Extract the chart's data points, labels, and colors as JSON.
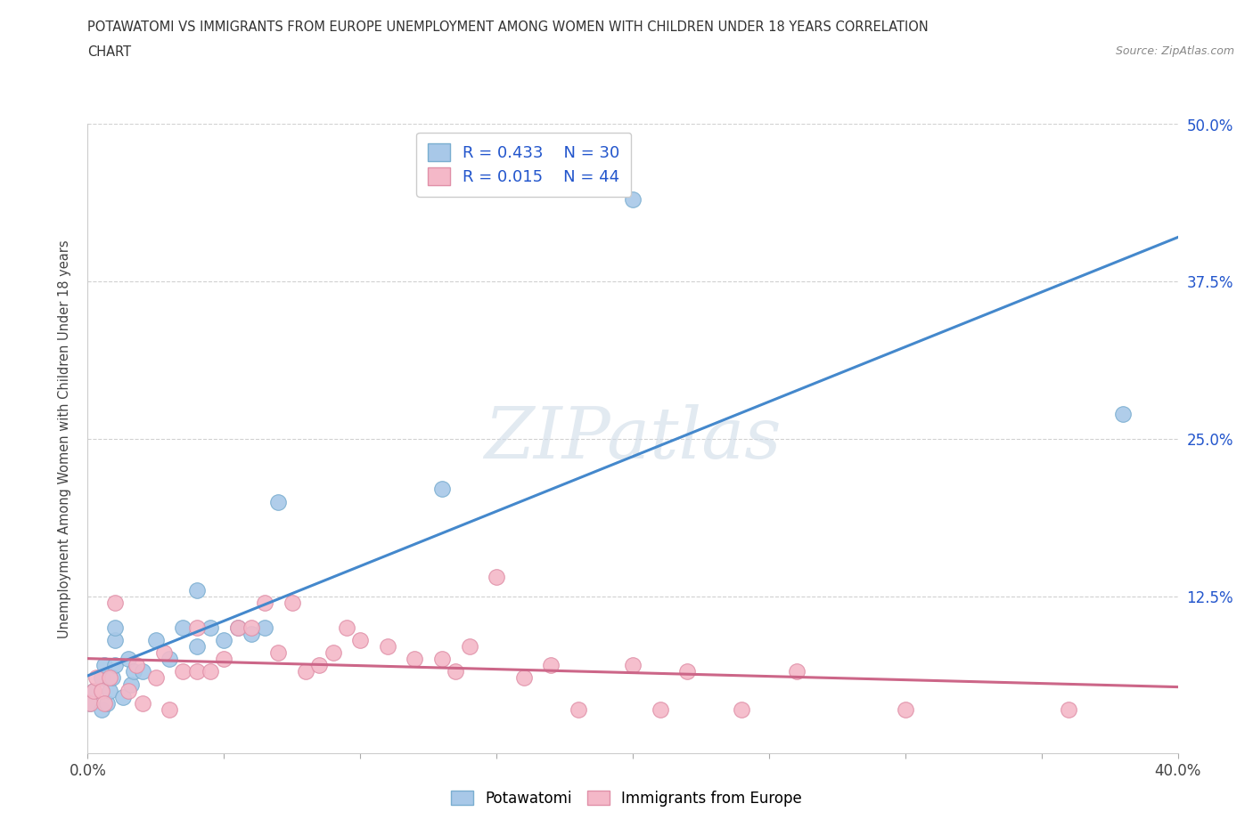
{
  "title_line1": "POTAWATOMI VS IMMIGRANTS FROM EUROPE UNEMPLOYMENT AMONG WOMEN WITH CHILDREN UNDER 18 YEARS CORRELATION",
  "title_line2": "CHART",
  "source": "Source: ZipAtlas.com",
  "ylabel": "Unemployment Among Women with Children Under 18 years",
  "xlim": [
    0.0,
    0.4
  ],
  "ylim": [
    0.0,
    0.5
  ],
  "xticks": [
    0.0,
    0.05,
    0.1,
    0.15,
    0.2,
    0.25,
    0.3,
    0.35,
    0.4
  ],
  "xtick_labels": [
    "0.0%",
    "",
    "",
    "",
    "",
    "",
    "",
    "",
    "40.0%"
  ],
  "yticks": [
    0.0,
    0.125,
    0.25,
    0.375,
    0.5
  ],
  "ytick_labels": [
    "",
    "12.5%",
    "25.0%",
    "37.5%",
    "50.0%"
  ],
  "R_potawatomi": 0.433,
  "N_potawatomi": 30,
  "R_europe": 0.015,
  "N_europe": 44,
  "potawatomi_color": "#a8c8e8",
  "europe_color": "#f4b8c8",
  "potawatomi_edge_color": "#7aaed0",
  "europe_edge_color": "#e090a8",
  "trend_potawatomi_color": "#4488cc",
  "trend_europe_color": "#cc6688",
  "potawatomi_x": [
    0.001,
    0.002,
    0.005,
    0.005,
    0.006,
    0.007,
    0.008,
    0.009,
    0.01,
    0.01,
    0.01,
    0.013,
    0.015,
    0.016,
    0.017,
    0.02,
    0.025,
    0.03,
    0.035,
    0.04,
    0.04,
    0.045,
    0.05,
    0.055,
    0.06,
    0.065,
    0.07,
    0.13,
    0.2,
    0.38
  ],
  "potawatomi_y": [
    0.04,
    0.05,
    0.035,
    0.06,
    0.07,
    0.04,
    0.05,
    0.06,
    0.07,
    0.09,
    0.1,
    0.045,
    0.075,
    0.055,
    0.065,
    0.065,
    0.09,
    0.075,
    0.1,
    0.085,
    0.13,
    0.1,
    0.09,
    0.1,
    0.095,
    0.1,
    0.2,
    0.21,
    0.44,
    0.27
  ],
  "europe_x": [
    0.001,
    0.002,
    0.003,
    0.005,
    0.006,
    0.008,
    0.01,
    0.015,
    0.018,
    0.02,
    0.025,
    0.028,
    0.03,
    0.035,
    0.04,
    0.04,
    0.045,
    0.05,
    0.055,
    0.06,
    0.065,
    0.07,
    0.075,
    0.08,
    0.085,
    0.09,
    0.095,
    0.1,
    0.11,
    0.12,
    0.13,
    0.135,
    0.14,
    0.15,
    0.16,
    0.17,
    0.18,
    0.2,
    0.21,
    0.22,
    0.24,
    0.26,
    0.3,
    0.36
  ],
  "europe_y": [
    0.04,
    0.05,
    0.06,
    0.05,
    0.04,
    0.06,
    0.12,
    0.05,
    0.07,
    0.04,
    0.06,
    0.08,
    0.035,
    0.065,
    0.065,
    0.1,
    0.065,
    0.075,
    0.1,
    0.1,
    0.12,
    0.08,
    0.12,
    0.065,
    0.07,
    0.08,
    0.1,
    0.09,
    0.085,
    0.075,
    0.075,
    0.065,
    0.085,
    0.14,
    0.06,
    0.07,
    0.035,
    0.07,
    0.035,
    0.065,
    0.035,
    0.065,
    0.035,
    0.035
  ],
  "watermark_text": "ZIPatlas",
  "background_color": "#ffffff",
  "grid_color": "#cccccc",
  "legend_label_color": "#2255cc",
  "axis_label_color": "#444444",
  "source_color": "#888888"
}
